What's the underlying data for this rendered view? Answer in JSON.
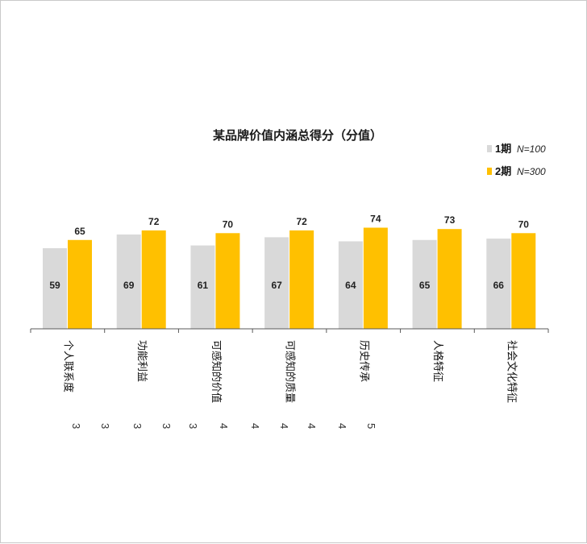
{
  "chart_data": {
    "type": "bar",
    "title": "某品牌价值内涵总得分（分值）",
    "xlabel": "",
    "ylabel": "",
    "ylim": [
      0,
      80
    ],
    "grid": false,
    "legend_position": "top-right",
    "categories": [
      "个人联系度",
      "功能利益",
      "可感知的价值",
      "可感知的质量",
      "历史传承",
      "人格特征",
      "社会文化特征"
    ],
    "series": [
      {
        "name": "1期",
        "note": "N=100",
        "color": "#d9d9d9",
        "values": [
          59,
          69,
          61,
          67,
          64,
          65,
          66
        ]
      },
      {
        "name": "2期",
        "note": "N=300",
        "color": "#ffc000",
        "values": [
          65,
          72,
          70,
          72,
          74,
          73,
          70
        ]
      }
    ],
    "stray_digits": [
      "3",
      "3",
      "3",
      "3",
      "3",
      "4",
      "4",
      "4",
      "4",
      "4",
      "5"
    ]
  }
}
